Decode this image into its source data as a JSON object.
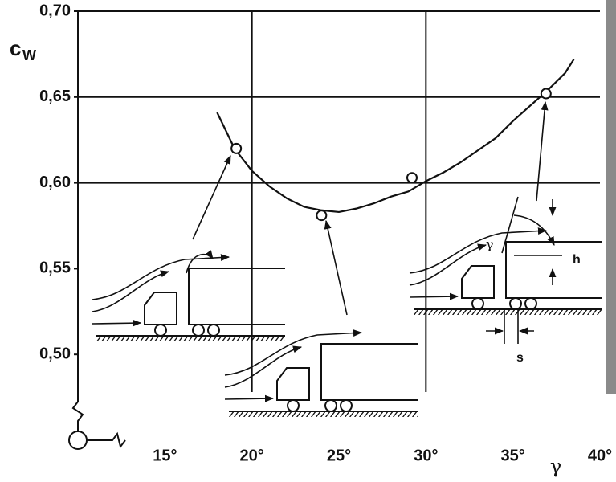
{
  "chart_data": {
    "type": "scatter",
    "xlabel": "γ",
    "ylabel": "c",
    "ylabel_sub": "W",
    "annotations": [
      "γ",
      "h",
      "s"
    ],
    "xlim": [
      10,
      40
    ],
    "ylim": [
      0.45,
      0.7
    ],
    "xticks": [
      {
        "value": 15,
        "label": "15°"
      },
      {
        "value": 20,
        "label": "20°"
      },
      {
        "value": 25,
        "label": "25°"
      },
      {
        "value": 30,
        "label": "30°"
      },
      {
        "value": 35,
        "label": "35°"
      },
      {
        "value": 40,
        "label": "40°"
      }
    ],
    "yticks": [
      {
        "value": 0.5,
        "label": "0,50"
      },
      {
        "value": 0.55,
        "label": "0,55"
      },
      {
        "value": 0.6,
        "label": "0,60"
      },
      {
        "value": 0.65,
        "label": "0,65"
      },
      {
        "value": 0.7,
        "label": "0,70"
      }
    ],
    "xgrid": [
      20,
      30
    ],
    "ygrid": [
      0.6,
      0.65,
      0.7
    ],
    "color": "#111111",
    "points": {
      "x": [
        19.1,
        24.0,
        29.2,
        36.9
      ],
      "values": [
        0.62,
        0.581,
        0.603,
        0.652
      ]
    },
    "curve": {
      "x": [
        18,
        19,
        20,
        21,
        22,
        23,
        24,
        25,
        26,
        27,
        28,
        29,
        30,
        31,
        32,
        33,
        34,
        35,
        36,
        37,
        38,
        38.5
      ],
      "values": [
        0.641,
        0.62,
        0.607,
        0.598,
        0.591,
        0.586,
        0.584,
        0.583,
        0.585,
        0.588,
        0.592,
        0.595,
        0.601,
        0.606,
        0.612,
        0.619,
        0.626,
        0.636,
        0.645,
        0.654,
        0.664,
        0.672
      ]
    }
  }
}
